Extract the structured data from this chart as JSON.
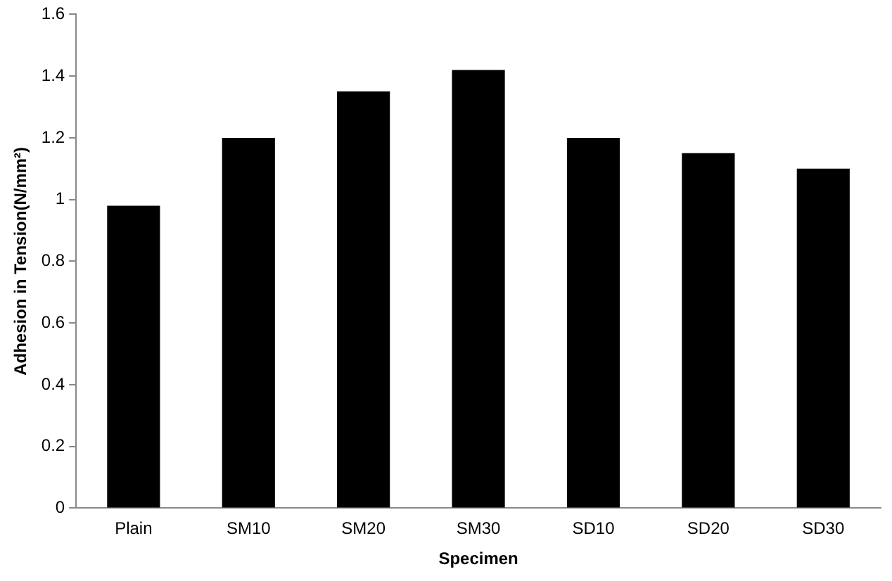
{
  "chart_data": {
    "type": "bar",
    "xlabel": "Specimen",
    "ylabel": "Adhesion in Tension(N/mm²)",
    "categories": [
      "Plain",
      "SM10",
      "SM20",
      "SM30",
      "SD10",
      "SD20",
      "SD30"
    ],
    "values": [
      0.98,
      1.2,
      1.35,
      1.42,
      1.2,
      1.15,
      1.1
    ],
    "color": "#000000",
    "ylim": [
      0,
      1.6
    ],
    "yticks": [
      0,
      0.2,
      0.4,
      0.6,
      0.8,
      1,
      1.2,
      1.4,
      1.6
    ],
    "grid": false,
    "legend": false
  }
}
